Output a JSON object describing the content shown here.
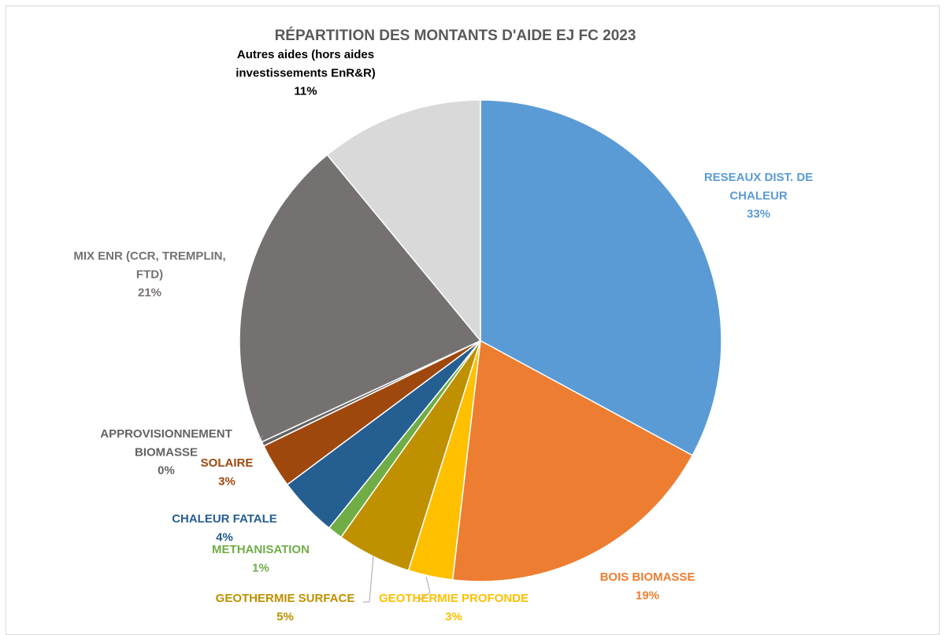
{
  "chart_data": {
    "type": "pie",
    "title": "RÉPARTITION DES MONTANTS D'AIDE EJ FC 2023",
    "slices": [
      {
        "name": "RESEAUX DIST. DE CHALEUR",
        "label_lines": [
          "RESEAUX DIST. DE",
          "CHALEUR"
        ],
        "value": 33,
        "pct_label": "33%",
        "color": "#5b9bd5",
        "label_color": "#5b9bd5"
      },
      {
        "name": "BOIS BIOMASSE",
        "label_lines": [
          "BOIS BIOMASSE"
        ],
        "value": 19,
        "pct_label": "19%",
        "color": "#ed7d31",
        "label_color": "#ed7d31"
      },
      {
        "name": "GEOTHERMIE PROFONDE",
        "label_lines": [
          "GEOTHERMIE PROFONDE"
        ],
        "value": 3,
        "pct_label": "3%",
        "color": "#ffc000",
        "label_color": "#ffc000"
      },
      {
        "name": "GEOTHERMIE SURFACE",
        "label_lines": [
          "GEOTHERMIE SURFACE"
        ],
        "value": 5,
        "pct_label": "5%",
        "color": "#bf9000",
        "label_color": "#bf9000"
      },
      {
        "name": "METHANISATION",
        "label_lines": [
          "METHANISATION"
        ],
        "value": 1,
        "pct_label": "1%",
        "color": "#70ad47",
        "label_color": "#70ad47"
      },
      {
        "name": "CHALEUR FATALE",
        "label_lines": [
          "CHALEUR FATALE"
        ],
        "value": 4,
        "pct_label": "4%",
        "color": "#255e91",
        "label_color": "#255e91"
      },
      {
        "name": "SOLAIRE",
        "label_lines": [
          "SOLAIRE"
        ],
        "value": 3,
        "pct_label": "3%",
        "color": "#9e480e",
        "label_color": "#9e480e"
      },
      {
        "name": "APPROVISIONNEMENT BIOMASSE",
        "label_lines": [
          "APPROVISIONNEMENT",
          "BIOMASSE"
        ],
        "value": 0.3,
        "pct_label": "0%",
        "color": "#636363",
        "label_color": "#636363"
      },
      {
        "name": "MIX ENR (CCR, TREMPLIN, FTD)",
        "label_lines": [
          "MIX ENR (CCR, TREMPLIN,",
          "FTD)"
        ],
        "value": 21,
        "pct_label": "21%",
        "color": "#767171",
        "label_color": "#767171"
      },
      {
        "name": "Autres aides (hors aides investissements EnR&R)",
        "label_lines": [
          "Autres aides (hors aides",
          "investissements EnR&R)"
        ],
        "value": 11,
        "pct_label": "11%",
        "color": "#d9d9d9",
        "label_color": "#000000"
      }
    ]
  }
}
